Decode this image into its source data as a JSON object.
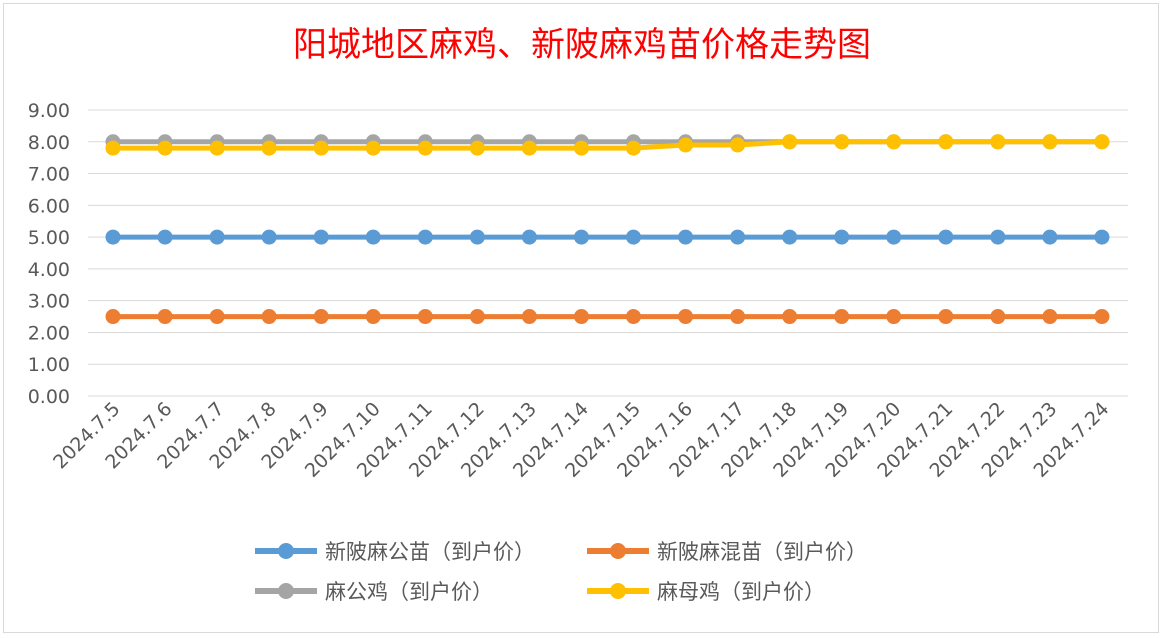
{
  "chart_data": {
    "type": "line",
    "title": "阳城地区麻鸡、新陂麻鸡苗价格走势图",
    "categories": [
      "2024.7.5",
      "2024.7.6",
      "2024.7.7",
      "2024.7.8",
      "2024.7.9",
      "2024.7.10",
      "2024.7.11",
      "2024.7.12",
      "2024.7.13",
      "2024.7.14",
      "2024.7.15",
      "2024.7.16",
      "2024.7.17",
      "2024.7.18",
      "2024.7.19",
      "2024.7.20",
      "2024.7.21",
      "2024.7.22",
      "2024.7.23",
      "2024.7.24"
    ],
    "y_ticks": [
      "0.00",
      "1.00",
      "2.00",
      "3.00",
      "4.00",
      "5.00",
      "6.00",
      "7.00",
      "8.00",
      "9.00"
    ],
    "ylim": [
      0,
      9
    ],
    "grid": true,
    "legend_position": "bottom",
    "series": [
      {
        "name": "新陂麻公苗（到户价）",
        "color": "#5b9bd5",
        "values": [
          5,
          5,
          5,
          5,
          5,
          5,
          5,
          5,
          5,
          5,
          5,
          5,
          5,
          5,
          5,
          5,
          5,
          5,
          5,
          5
        ]
      },
      {
        "name": "新陂麻混苗（到户价）",
        "color": "#ed7d31",
        "values": [
          2.5,
          2.5,
          2.5,
          2.5,
          2.5,
          2.5,
          2.5,
          2.5,
          2.5,
          2.5,
          2.5,
          2.5,
          2.5,
          2.5,
          2.5,
          2.5,
          2.5,
          2.5,
          2.5,
          2.5
        ]
      },
      {
        "name": "麻公鸡（到户价）",
        "color": "#a5a5a5",
        "values": [
          8,
          8,
          8,
          8,
          8,
          8,
          8,
          8,
          8,
          8,
          8,
          8,
          8,
          8,
          8,
          8,
          8,
          8,
          8,
          8
        ]
      },
      {
        "name": "麻母鸡（到户价）",
        "color": "#ffc000",
        "values": [
          7.8,
          7.8,
          7.8,
          7.8,
          7.8,
          7.8,
          7.8,
          7.8,
          7.8,
          7.8,
          7.8,
          7.9,
          7.9,
          8,
          8,
          8,
          8,
          8,
          8,
          8
        ]
      }
    ]
  }
}
